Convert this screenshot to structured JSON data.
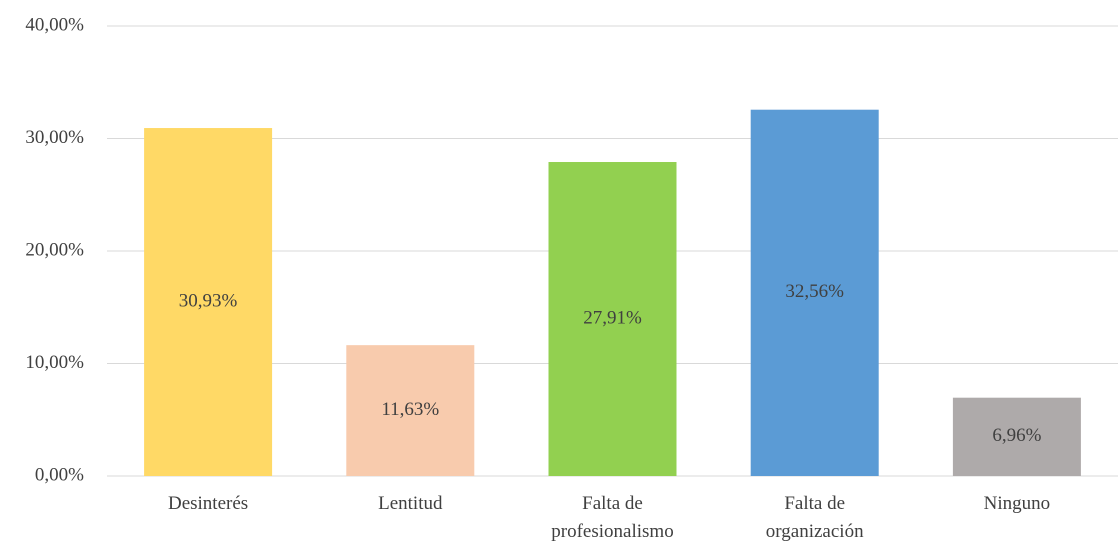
{
  "chart_data": {
    "type": "bar",
    "categories": [
      "Desinterés",
      "Lentitud",
      "Falta de\nprofesionalismo",
      "Falta de\norganización",
      "Ninguno"
    ],
    "values": [
      30.93,
      11.63,
      27.91,
      32.56,
      6.96
    ],
    "value_labels": [
      "30,93%",
      "11,63%",
      "27,91%",
      "32,56%",
      "6,96%"
    ],
    "colors": [
      "#ffd966",
      "#f8cbad",
      "#92d050",
      "#5b9bd5",
      "#aeaaaa"
    ],
    "ylim": [
      0,
      40
    ],
    "yticks": [
      {
        "value": 0,
        "label": "0,00%"
      },
      {
        "value": 10,
        "label": "10,00%"
      },
      {
        "value": 20,
        "label": "20,00%"
      },
      {
        "value": 30,
        "label": "30,00%"
      },
      {
        "value": 40,
        "label": "40,00%"
      }
    ],
    "grid": true
  }
}
